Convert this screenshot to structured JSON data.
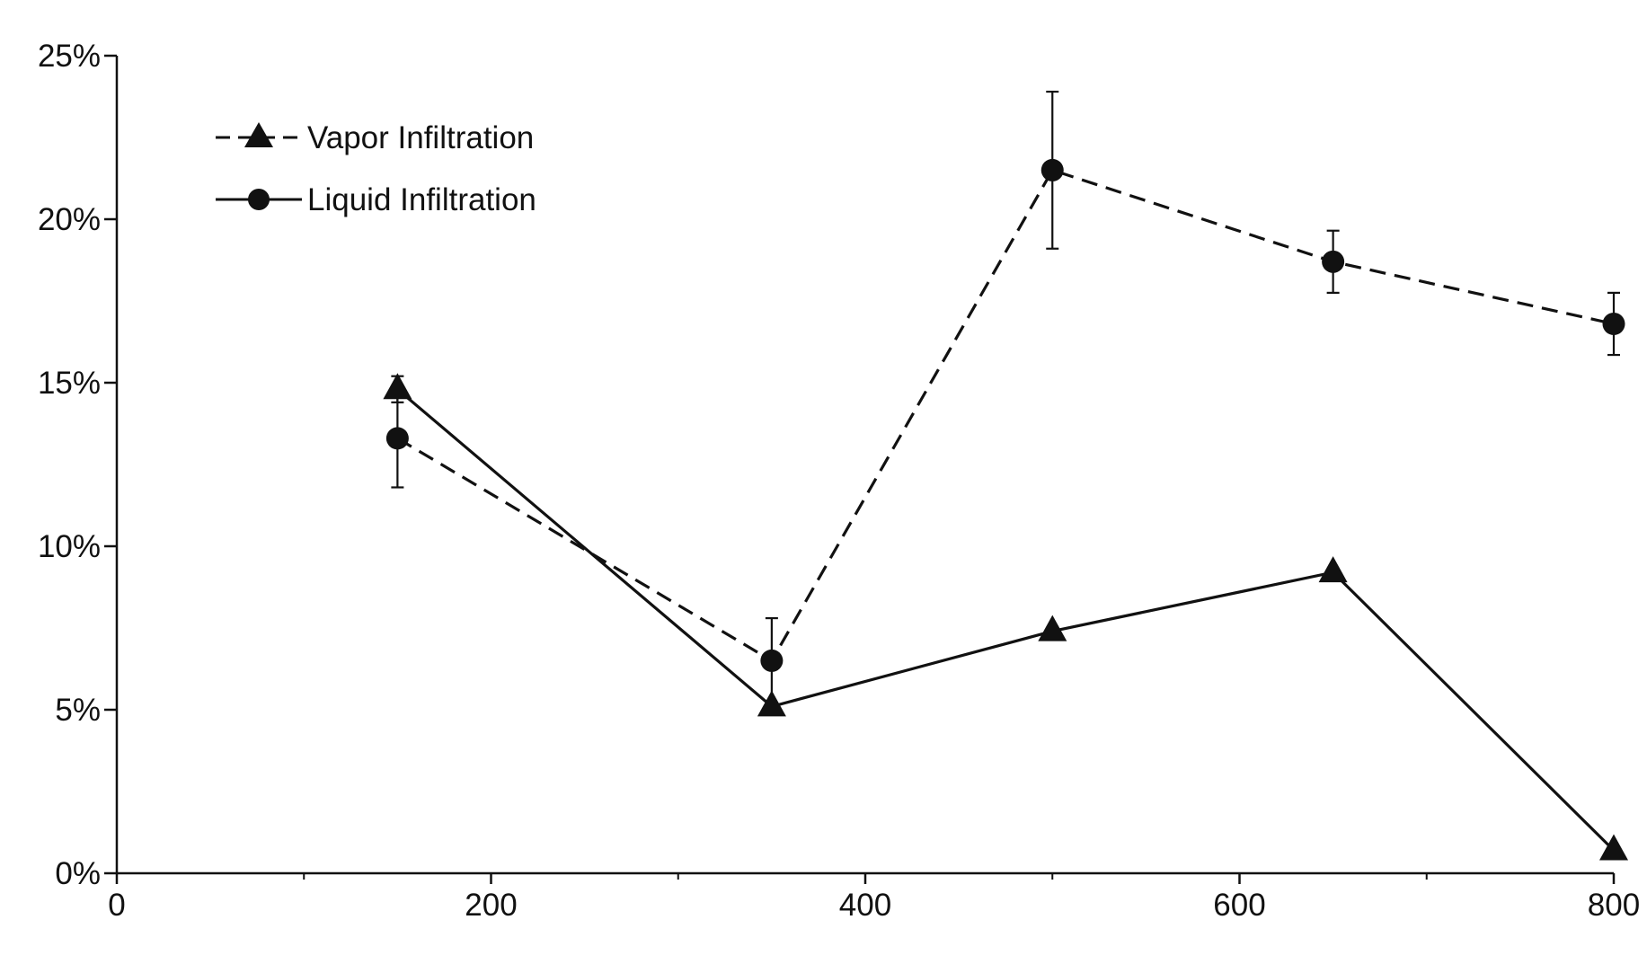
{
  "chart_data": {
    "type": "line",
    "title": "",
    "xlabel": "",
    "ylabel": "",
    "xlim": [
      0,
      800
    ],
    "ylim": [
      0,
      25
    ],
    "x_ticks": [
      0,
      200,
      400,
      600,
      800
    ],
    "x_minor_ticks": [
      100,
      300,
      500,
      700
    ],
    "x_tick_labels": [
      "0",
      "200",
      "400",
      "600",
      "800"
    ],
    "y_ticks": [
      0,
      5,
      10,
      15,
      20,
      25
    ],
    "y_tick_labels": [
      "0%",
      "5%",
      "10%",
      "15%",
      "20%",
      "25%"
    ],
    "grid": false,
    "legend_position": "top-left",
    "series": [
      {
        "name": "Vapor Infiltration",
        "marker": "triangle",
        "line_style": "solid",
        "x": [
          150,
          350,
          500,
          650,
          800
        ],
        "y": [
          14.8,
          5.1,
          7.4,
          9.2,
          0.7
        ],
        "error": [
          0.4,
          0,
          0,
          0,
          0
        ]
      },
      {
        "name": "Liquid Infiltration",
        "marker": "circle",
        "line_style": "dashed",
        "x": [
          150,
          350,
          500,
          650,
          800
        ],
        "y": [
          13.3,
          6.5,
          21.5,
          18.7,
          16.8
        ],
        "error": [
          1.5,
          1.3,
          2.4,
          0.95,
          0.95
        ]
      }
    ]
  }
}
